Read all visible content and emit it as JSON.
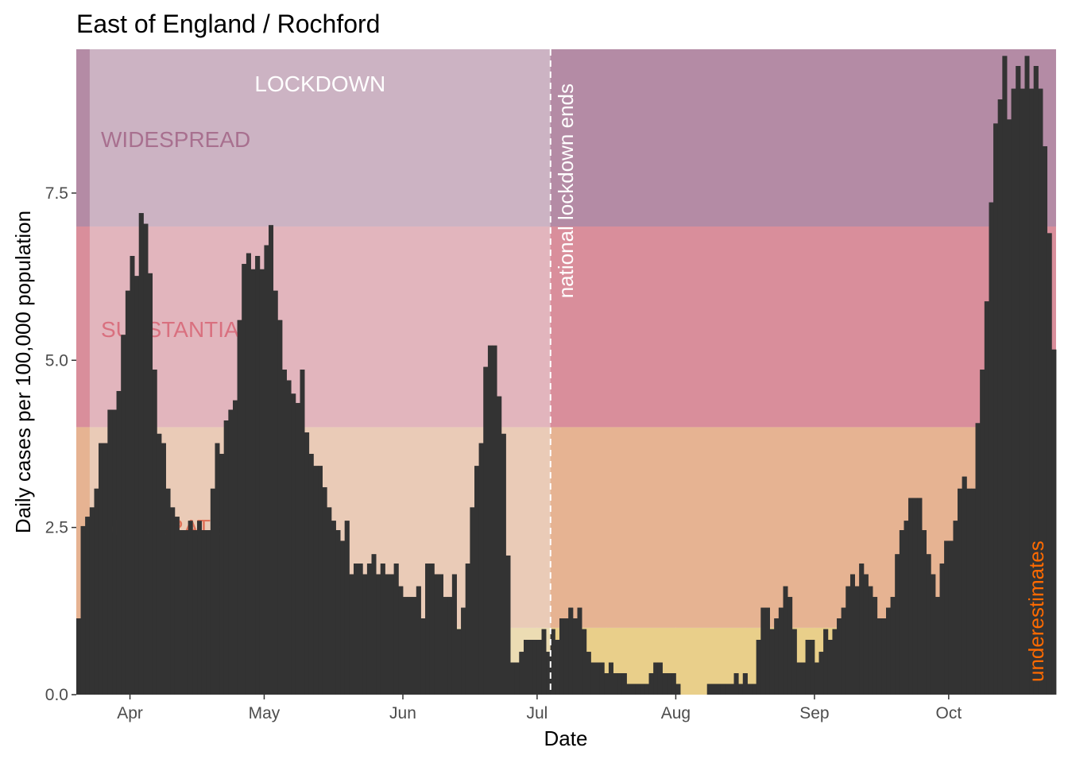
{
  "chart_data": {
    "type": "bar",
    "title": "East of England / Rochford",
    "xlabel": "Date",
    "ylabel": "Daily cases per 100,000 population",
    "x_start": "2020-03-20",
    "xlim": [
      "2020-03-20",
      "2020-10-22"
    ],
    "ylim": [
      0,
      9.65
    ],
    "y_ticks": [
      0,
      2.5,
      5,
      7.5
    ],
    "y_tick_labels": [
      "0.0",
      "2.5",
      "5.0",
      "7.5"
    ],
    "x_ticks": [
      "2020-04-01",
      "2020-05-01",
      "2020-06-01",
      "2020-07-01",
      "2020-08-01",
      "2020-09-01",
      "2020-10-01"
    ],
    "x_tick_labels": [
      "Apr",
      "May",
      "Jun",
      "Jul",
      "Aug",
      "Sep",
      "Oct"
    ],
    "bar_color": "#333333",
    "values": [
      1.14,
      2.52,
      2.66,
      2.8,
      3.08,
      3.76,
      3.76,
      4.26,
      4.26,
      4.54,
      5.38,
      6.04,
      6.56,
      6.26,
      7.2,
      7.04,
      6.3,
      4.86,
      3.9,
      3.76,
      3.08,
      2.8,
      2.66,
      2.46,
      2.46,
      2.6,
      2.46,
      2.6,
      2.46,
      2.46,
      3.08,
      3.76,
      3.6,
      4.1,
      4.26,
      4.4,
      5.6,
      6.44,
      6.6,
      6.36,
      6.56,
      6.36,
      6.72,
      7.02,
      6.04,
      5.6,
      4.86,
      4.7,
      4.5,
      4.36,
      4.86,
      3.92,
      3.6,
      3.42,
      3.42,
      3.1,
      2.8,
      2.6,
      2.46,
      2.3,
      2.6,
      1.8,
      1.96,
      1.96,
      1.8,
      1.96,
      2.1,
      1.8,
      1.96,
      1.8,
      1.8,
      1.96,
      1.62,
      1.46,
      1.46,
      1.46,
      1.62,
      1.14,
      1.96,
      1.96,
      1.8,
      1.8,
      1.46,
      1.46,
      1.8,
      0.98,
      1.3,
      1.96,
      2.8,
      3.42,
      3.76,
      4.9,
      5.22,
      5.22,
      4.46,
      3.9,
      2.08,
      0.48,
      0.48,
      0.64,
      0.82,
      0.82,
      0.82,
      0.82,
      0.98,
      0.64,
      0.98,
      0.82,
      1.14,
      1.14,
      1.3,
      1.14,
      1.3,
      0.98,
      0.64,
      0.48,
      0.48,
      0.48,
      0.32,
      0.48,
      0.32,
      0.32,
      0.32,
      0.16,
      0.16,
      0.16,
      0.16,
      0.16,
      0.32,
      0.48,
      0.48,
      0.32,
      0.32,
      0.32,
      0.16,
      0.0,
      0.0,
      0.0,
      0.0,
      0.0,
      0.0,
      0.16,
      0.16,
      0.16,
      0.16,
      0.16,
      0.16,
      0.32,
      0.16,
      0.32,
      0.16,
      0.16,
      0.82,
      1.3,
      1.3,
      0.98,
      1.14,
      1.3,
      1.62,
      1.46,
      0.98,
      0.48,
      0.48,
      0.82,
      0.82,
      0.48,
      0.64,
      0.98,
      0.82,
      0.98,
      1.14,
      1.3,
      1.62,
      1.8,
      1.62,
      1.96,
      1.8,
      1.62,
      1.46,
      1.14,
      1.14,
      1.3,
      1.46,
      2.1,
      2.46,
      2.6,
      2.94,
      2.94,
      2.94,
      2.46,
      2.1,
      1.8,
      1.46,
      1.96,
      2.3,
      2.3,
      2.6,
      3.08,
      3.26,
      3.08,
      3.08,
      4.06,
      4.86,
      5.88,
      7.36,
      8.54,
      8.9,
      9.55,
      8.6,
      9.06,
      9.4,
      9.06,
      9.55,
      9.06,
      9.4,
      9.06,
      8.2,
      6.9,
      5.16
    ]
  },
  "bands": [
    {
      "name": "low",
      "from": 0,
      "to": 1,
      "color": "#e9cf8a"
    },
    {
      "name": "moderate",
      "from": 1,
      "to": 4,
      "color": "#e6b392"
    },
    {
      "name": "substantial",
      "from": 4,
      "to": 7,
      "color": "#d98e9b"
    },
    {
      "name": "widespread",
      "from": 7,
      "to": 9.65,
      "color": "#b48ba5"
    }
  ],
  "band_labels": {
    "widespread": "WIDESPREAD",
    "substantial": "SUBSTANTIAL",
    "moderate": "MODERATE",
    "widespread_color": "#a8708f",
    "substantial_color": "#d9707f",
    "moderate_color": "#e0735a"
  },
  "lockdown": {
    "label": "LOCKDOWN",
    "from": "2020-03-23",
    "to": "2020-07-04",
    "overlay_color": "#f0f0f0",
    "overlay_opacity": 0.4
  },
  "annotation_line": {
    "date": "2020-07-04",
    "label": "national lockdown ends"
  },
  "underestimates": {
    "label": "underestimates",
    "from": "2020-10-20",
    "color": "#ff6a00"
  },
  "panel_color": "#ebebeb"
}
